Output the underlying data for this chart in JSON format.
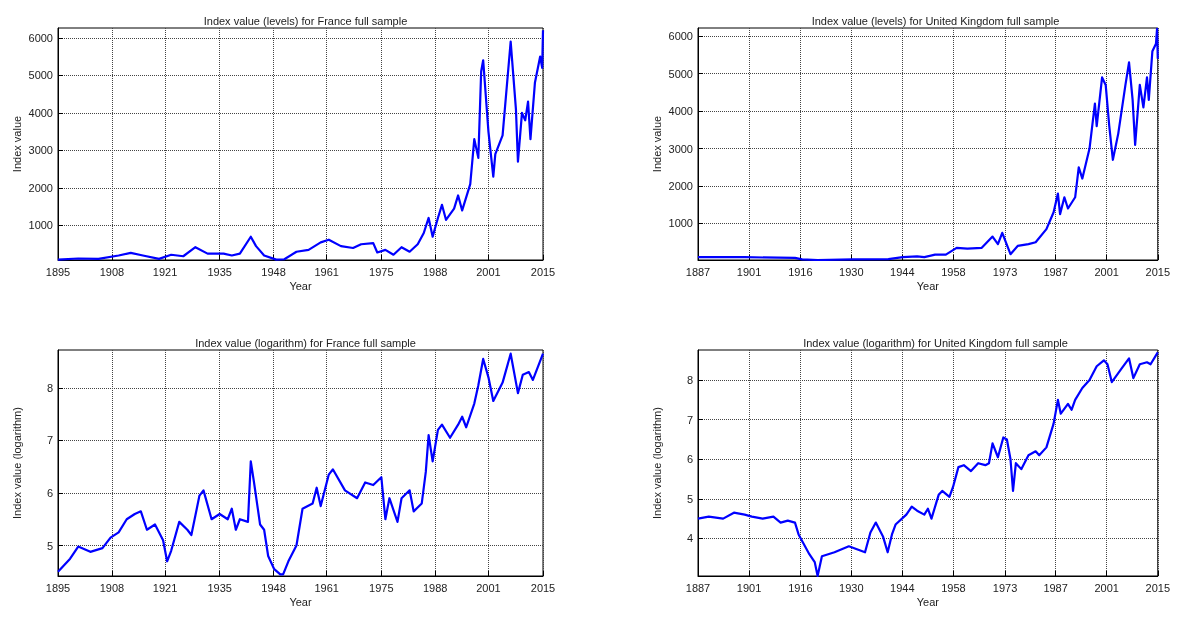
{
  "chart_data": [
    {
      "type": "line",
      "title": "Index value (levels) for France full sample",
      "xlabel": "Year",
      "ylabel": "Index value",
      "color": "#0000ff",
      "grid": true,
      "xlim": [
        1895,
        2015
      ],
      "xticks": [
        1895,
        {
          "value": 1908.33,
          "label": "1908"
        },
        {
          "value": 1921.49,
          "label": "1921"
        },
        1935,
        {
          "value": 1948.33,
          "label": "1948"
        },
        {
          "value": 1961.49,
          "label": "1961"
        },
        1975,
        {
          "value": 1988.33,
          "label": "1988"
        },
        {
          "value": 2001.49,
          "label": "2001"
        },
        2015
      ],
      "ylim": [
        80,
        6260
      ],
      "yticks": [
        1000,
        2000,
        3000,
        4000,
        5000,
        6000
      ],
      "x": [
        1895,
        1900,
        1905,
        1910,
        1913,
        1916,
        1920,
        1923,
        1926,
        1929,
        1932,
        1936,
        1938,
        1940,
        1942.7,
        1944,
        1946,
        1949,
        1951,
        1954,
        1957,
        1960,
        1962,
        1965,
        1968,
        1970,
        1973,
        1974,
        1976,
        1978,
        1980,
        1982,
        1984,
        1985.5,
        1986.7,
        1987.7,
        1989,
        1990,
        1991,
        1993,
        1994,
        1995,
        1997,
        1998,
        1999,
        1999.7,
        2000.2,
        2001.5,
        2002.7,
        2003.2,
        2005,
        2007,
        2008.3,
        2008.8,
        2009.8,
        2010.6,
        2011.3,
        2011.9,
        2013,
        2014.3,
        2014.8,
        2015
      ],
      "values": [
        90,
        120,
        110,
        200,
        270,
        200,
        110,
        220,
        180,
        420,
        250,
        250,
        200,
        250,
        700,
        450,
        200,
        90,
        100,
        300,
        350,
        550,
        620,
        450,
        400,
        500,
        530,
        280,
        350,
        220,
        420,
        300,
        500,
        800,
        1200,
        700,
        1200,
        1550,
        1150,
        1450,
        1800,
        1400,
        2100,
        3300,
        2800,
        5100,
        5400,
        3500,
        2300,
        2900,
        3400,
        5900,
        4100,
        2700,
        4000,
        3800,
        4300,
        3300,
        4800,
        5500,
        5200,
        6200
      ]
    },
    {
      "type": "line",
      "title": "Index value (levels) for United Kingdom full sample",
      "xlabel": "Year",
      "ylabel": "Index value",
      "color": "#0000ff",
      "grid": true,
      "xlim": [
        1887,
        2015
      ],
      "xticks": [
        1887,
        {
          "value": 1901.22,
          "label": "1901"
        },
        {
          "value": 1915.5,
          "label": "1916"
        },
        {
          "value": 1929.67,
          "label": "1930"
        },
        {
          "value": 1943.89,
          "label": "1944"
        },
        {
          "value": 1958.11,
          "label": "1958"
        },
        {
          "value": 1972.5,
          "label": "1973"
        },
        {
          "value": 1986.56,
          "label": "1987"
        },
        {
          "value": 2000.78,
          "label": "2001"
        },
        2015
      ],
      "ylim": [
        25,
        6220
      ],
      "yticks": [
        1000,
        2000,
        3000,
        4000,
        5000,
        6000
      ],
      "x": [
        1887,
        1900,
        1914,
        1916,
        1920.3,
        1930,
        1940,
        1944,
        1948,
        1950,
        1953,
        1956,
        1959,
        1962,
        1966,
        1969,
        1970.5,
        1971.7,
        1974,
        1976,
        1979,
        1981,
        1984,
        1986,
        1987.2,
        1987.8,
        1989,
        1990,
        1992,
        1993,
        1994,
        1996,
        1997.5,
        1998,
        1999.5,
        2000.5,
        2001.5,
        2002.5,
        2004,
        2006,
        2007,
        2008,
        2008.7,
        2010,
        2011,
        2012,
        2012.5,
        2013.5,
        2014.5,
        2014.8,
        2015
      ],
      "values": [
        100,
        100,
        80,
        40,
        25,
        40,
        50,
        100,
        120,
        100,
        170,
        170,
        350,
        330,
        350,
        650,
        450,
        750,
        180,
        400,
        450,
        500,
        850,
        1300,
        1800,
        1250,
        1700,
        1400,
        1700,
        2500,
        2200,
        3000,
        4200,
        3600,
        4900,
        4700,
        3600,
        2700,
        3400,
        4700,
        5300,
        4300,
        3100,
        4700,
        4100,
        4900,
        4300,
        5600,
        5800,
        6200,
        5400
      ]
    },
    {
      "type": "line",
      "title": "Index value (logarithm) for France full sample",
      "xlabel": "Year",
      "ylabel": "Index value (logarithm)",
      "color": "#0000ff",
      "grid": true,
      "xlim": [
        1895,
        2015
      ],
      "xticks": [
        1895,
        {
          "value": 1908.33,
          "label": "1908"
        },
        {
          "value": 1921.49,
          "label": "1921"
        },
        1935,
        {
          "value": 1948.33,
          "label": "1948"
        },
        {
          "value": 1961.49,
          "label": "1961"
        },
        1975,
        {
          "value": 1988.33,
          "label": "1988"
        },
        {
          "value": 2001.49,
          "label": "2001"
        },
        2015
      ],
      "ylim": [
        4.42,
        8.72
      ],
      "yticks": [
        5,
        6,
        7,
        8
      ],
      "x": [
        1895,
        1898,
        1900,
        1903,
        1906,
        1908,
        1910,
        1912,
        1914,
        1915.5,
        1917,
        1919,
        1921,
        1922,
        1923,
        1925,
        1927,
        1928,
        1930,
        1931,
        1933,
        1935,
        1937,
        1938,
        1939,
        1940,
        1942,
        1942.7,
        1943.5,
        1945,
        1946,
        1947,
        1948.5,
        1950,
        1950.7,
        1952,
        1954,
        1955.5,
        1958,
        1959,
        1960,
        1962,
        1963,
        1966,
        1969,
        1971,
        1973,
        1975,
        1976,
        1977,
        1979,
        1980,
        1982,
        1983,
        1985,
        1986,
        1986.7,
        1987.7,
        1989,
        1990,
        1992,
        1994,
        1995,
        1996,
        1998,
        1999,
        2000.2,
        2001.5,
        2002.7,
        2005,
        2007,
        2008.8,
        2010,
        2011.5,
        2012.5,
        2015
      ],
      "values": [
        4.5,
        4.75,
        4.98,
        4.88,
        4.95,
        5.15,
        5.25,
        5.5,
        5.6,
        5.65,
        5.3,
        5.4,
        5.1,
        4.7,
        4.9,
        5.45,
        5.3,
        5.2,
        5.95,
        6.05,
        5.5,
        5.6,
        5.5,
        5.7,
        5.3,
        5.5,
        5.45,
        6.6,
        6.2,
        5.4,
        5.3,
        4.8,
        4.55,
        4.45,
        4.45,
        4.7,
        5.0,
        5.7,
        5.8,
        6.1,
        5.75,
        6.35,
        6.45,
        6.05,
        5.9,
        6.2,
        6.15,
        6.3,
        5.5,
        5.9,
        5.45,
        5.9,
        6.05,
        5.65,
        5.8,
        6.4,
        7.1,
        6.6,
        7.2,
        7.3,
        7.05,
        7.3,
        7.45,
        7.25,
        7.7,
        8.05,
        8.55,
        8.2,
        7.75,
        8.1,
        8.65,
        7.9,
        8.25,
        8.3,
        8.15,
        8.65
      ]
    },
    {
      "type": "line",
      "title": "Index value (logarithm) for United Kingdom full sample",
      "xlabel": "Year",
      "ylabel": "Index value (logarithm)",
      "color": "#0000ff",
      "grid": true,
      "xlim": [
        1887,
        2015
      ],
      "xticks": [
        1887,
        {
          "value": 1901.22,
          "label": "1901"
        },
        {
          "value": 1915.5,
          "label": "1916"
        },
        {
          "value": 1929.67,
          "label": "1930"
        },
        {
          "value": 1943.89,
          "label": "1944"
        },
        {
          "value": 1958.11,
          "label": "1958"
        },
        {
          "value": 1972.5,
          "label": "1973"
        },
        {
          "value": 1986.56,
          "label": "1987"
        },
        {
          "value": 2000.78,
          "label": "2001"
        },
        2015
      ],
      "ylim": [
        3.05,
        8.76
      ],
      "yticks": [
        4,
        5,
        6,
        7,
        8
      ],
      "x": [
        1887,
        1890,
        1894,
        1897,
        1900,
        1902,
        1905,
        1908,
        1910,
        1912,
        1914,
        1915,
        1918,
        1919.5,
        1920.3,
        1921.5,
        1925,
        1929,
        1932,
        1933.5,
        1935,
        1936.5,
        1938.5,
        1939.8,
        1941,
        1942,
        1945,
        1946.5,
        1948,
        1950,
        1951,
        1952,
        1954,
        1955,
        1957,
        1958,
        1959.5,
        1961,
        1963,
        1965,
        1967,
        1968,
        1969,
        1970.5,
        1972,
        1973,
        1974,
        1974.7,
        1975.5,
        1977,
        1979,
        1981,
        1982,
        1984,
        1986,
        1987.2,
        1988,
        1990,
        1991,
        1992,
        1994,
        1996,
        1998,
        2000,
        2001,
        2002.2,
        2005,
        2007,
        2008.2,
        2010,
        2012,
        2013,
        2015
      ],
      "values": [
        4.5,
        4.55,
        4.5,
        4.65,
        4.6,
        4.55,
        4.5,
        4.55,
        4.4,
        4.45,
        4.4,
        4.1,
        3.6,
        3.4,
        3.05,
        3.55,
        3.65,
        3.8,
        3.7,
        3.65,
        4.15,
        4.4,
        4.05,
        3.65,
        4.1,
        4.35,
        4.6,
        4.8,
        4.7,
        4.6,
        4.75,
        4.5,
        5.1,
        5.2,
        5.05,
        5.3,
        5.8,
        5.85,
        5.7,
        5.9,
        5.85,
        5.9,
        6.4,
        6.05,
        6.55,
        6.5,
        6.0,
        5.2,
        5.9,
        5.75,
        6.1,
        6.2,
        6.1,
        6.3,
        6.9,
        7.5,
        7.15,
        7.4,
        7.25,
        7.5,
        7.8,
        8.0,
        8.35,
        8.5,
        8.4,
        7.95,
        8.3,
        8.55,
        8.05,
        8.4,
        8.45,
        8.4,
        8.7
      ]
    }
  ]
}
